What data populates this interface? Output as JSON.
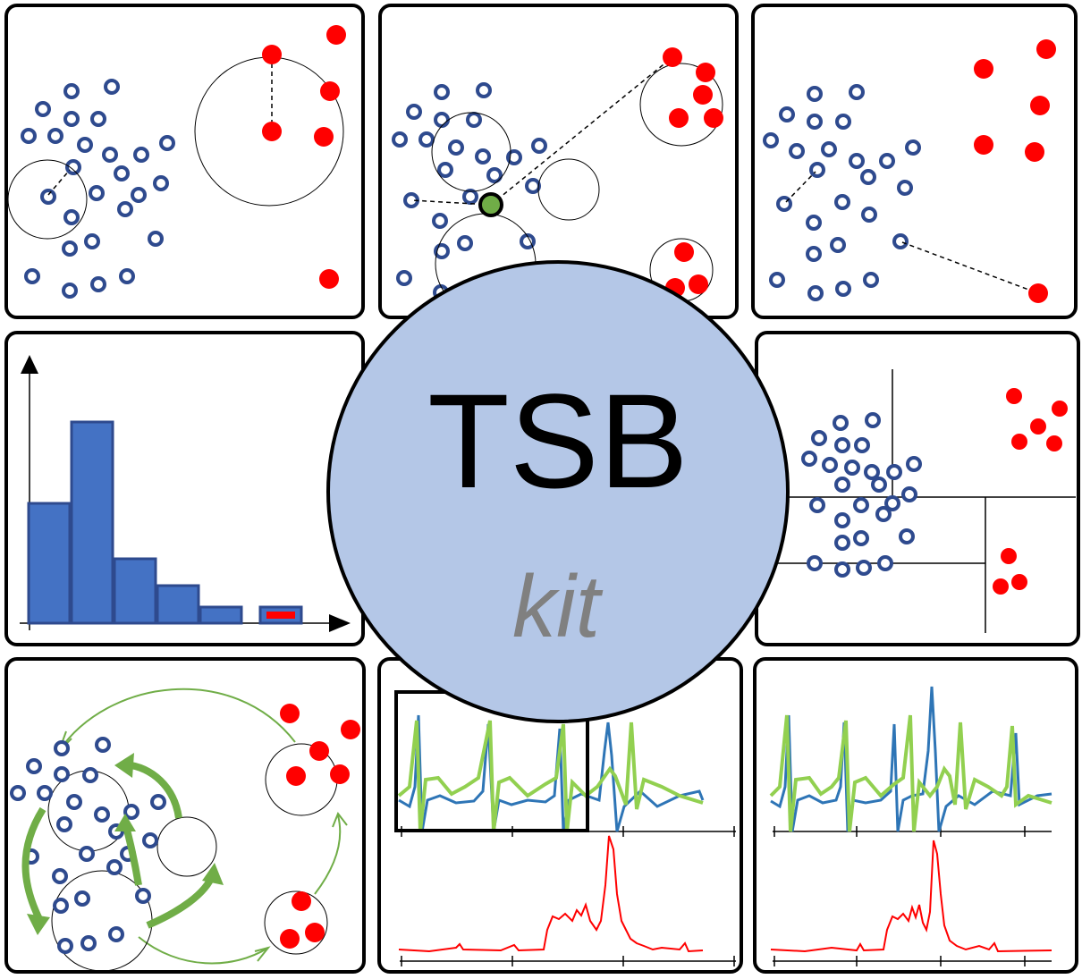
{
  "logo": {
    "title": "TSB",
    "subtitle": "kit",
    "fill_color": "#b4c7e7",
    "subtitle_color": "#808080"
  },
  "colors": {
    "inlier": "#2e4a8e",
    "outlier": "#ff0000",
    "highlight_point": "#70ad47",
    "histogram_bar": "#4472c4",
    "series_blue": "#2e75b6",
    "series_green": "#92d050",
    "score_red": "#ff0000"
  },
  "panels": {
    "histogram": {
      "values": [
        134,
        225,
        72,
        42,
        18,
        18
      ],
      "anomaly_bar_index": 5
    }
  }
}
